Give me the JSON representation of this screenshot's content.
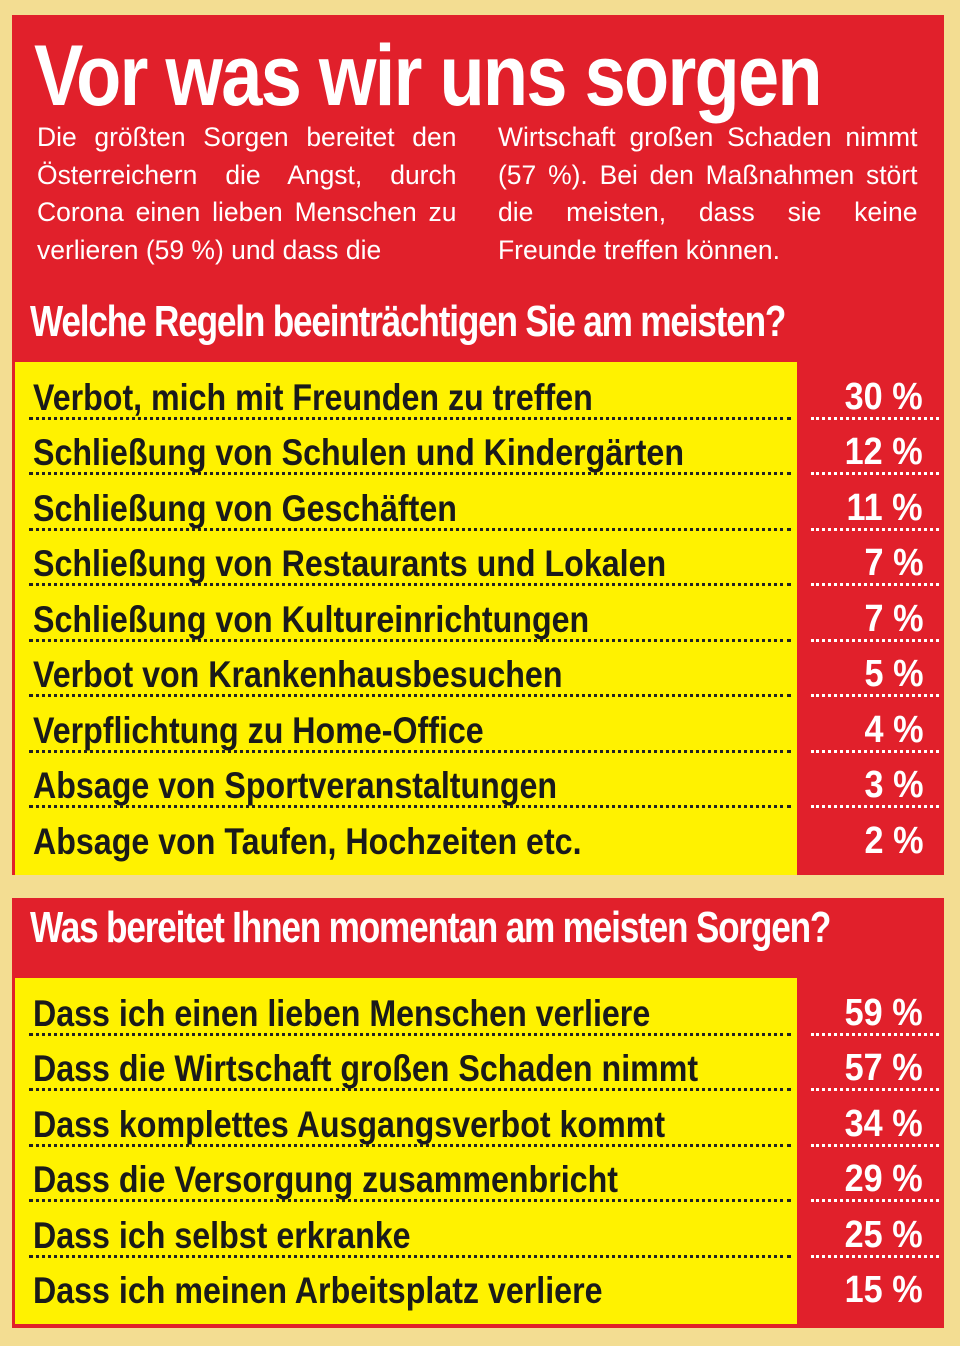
{
  "header": {
    "title": "Vor was wir uns sorgen",
    "intro": [
      "Die größten Sorgen bereitet den Österreichern die Angst, durch Corona einen lieben Menschen zu verlieren (59 %) und dass die",
      "Wirtschaft großen Schaden nimmt (57 %). Bei den Maßnahmen stört die meisten, dass sie keine Freunde treffen können."
    ]
  },
  "sections": [
    {
      "title": "Welche Regeln beeinträchtigen Sie am meisten?",
      "rows": [
        [
          "Verbot, mich mit Freunden zu treffen",
          "30 %"
        ],
        [
          "Schließung von Schulen und Kindergärten",
          "12 %"
        ],
        [
          "Schließung von Geschäften",
          "11 %"
        ],
        [
          "Schließung von Restaurants und Lokalen",
          "7 %"
        ],
        [
          "Schließung von Kultureinrichtungen",
          "7 %"
        ],
        [
          "Verbot von Krankenhausbesuchen",
          "5 %"
        ],
        [
          "Verpflichtung zu Home-Office",
          "4 %"
        ],
        [
          "Absage von Sportveranstaltungen",
          "3 %"
        ],
        [
          "Absage von Taufen, Hochzeiten etc.",
          "2 %"
        ]
      ]
    },
    {
      "title": "Was bereitet Ihnen momentan am meisten Sorgen?",
      "rows": [
        [
          "Dass ich einen lieben Menschen verliere",
          "59 %"
        ],
        [
          "Dass die Wirtschaft großen Schaden nimmt",
          "57 %"
        ],
        [
          "Dass komplettes Ausgangsverbot kommt",
          "34 %"
        ],
        [
          "Dass die Versorgung zusammenbricht",
          "29 %"
        ],
        [
          "Dass ich selbst erkranke",
          "25 %"
        ],
        [
          "Dass ich meinen Arbeitsplatz verliere",
          "15 %"
        ]
      ]
    }
  ]
}
